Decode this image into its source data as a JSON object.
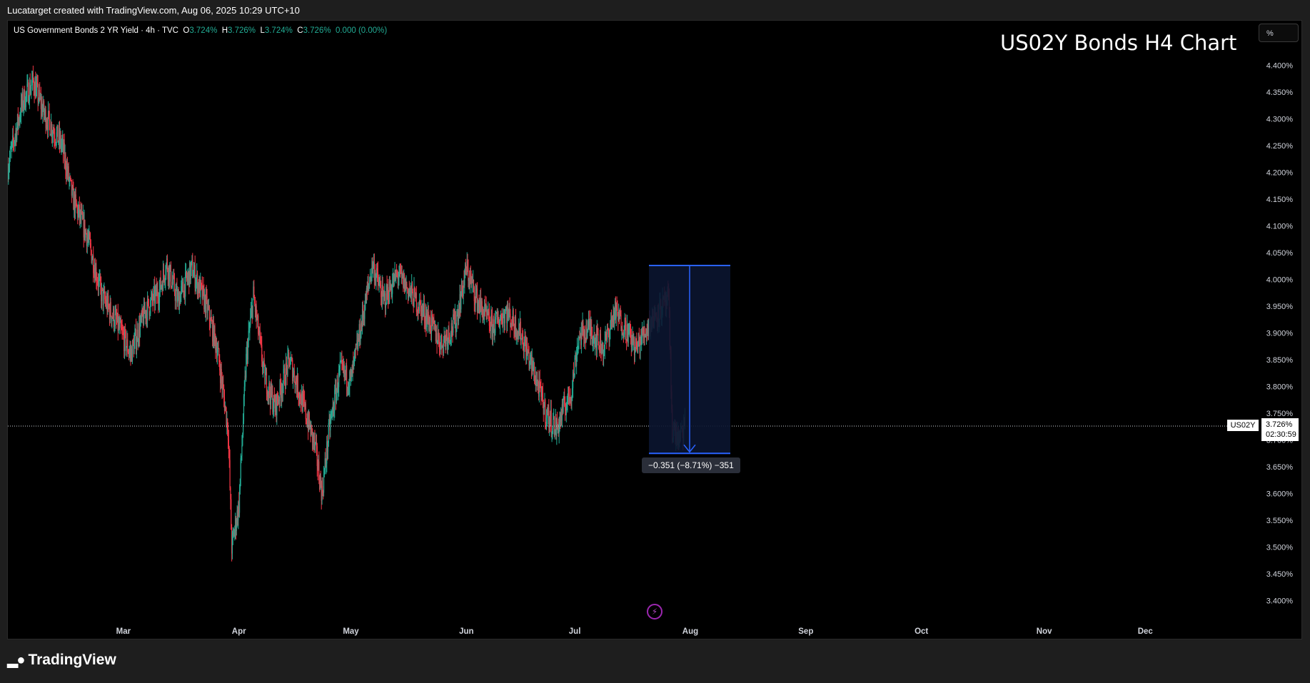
{
  "header": {
    "attribution": "Lucatarget created with TradingView.com, Aug 06, 2025 10:29 UTC+10"
  },
  "legend": {
    "instrument": "US Government Bonds 2 YR Yield · 4h · TVC",
    "o_label": "O",
    "o_value": "3.724%",
    "h_label": "H",
    "h_value": "3.726%",
    "l_label": "L",
    "l_value": "3.724%",
    "c_label": "C",
    "c_value": "3.726%",
    "change": "0.000 (0.00%)"
  },
  "title": "US02Y Bonds H4 Chart",
  "scale_button": "%",
  "price_tag": {
    "symbol": "US02Y",
    "price": "3.726%",
    "countdown": "02:30:59"
  },
  "measure": {
    "label": "−0.351 (−8.71%) −351",
    "from": 4.026,
    "to": 3.675
  },
  "footer": {
    "brand": "TradingView"
  },
  "colors": {
    "up": "#22ab94",
    "down": "#f23645",
    "background": "#000000",
    "measure_fill": "#0b1530",
    "measure_line": "#2962ff"
  },
  "chart_data": {
    "type": "candlestick",
    "title": "US02Y Bonds H4 Chart",
    "y_unit": "%",
    "ylim": [
      3.37,
      4.43
    ],
    "y_ticks": [
      "4.400%",
      "4.350%",
      "4.300%",
      "4.250%",
      "4.200%",
      "4.150%",
      "4.100%",
      "4.050%",
      "4.000%",
      "3.950%",
      "3.900%",
      "3.850%",
      "3.800%",
      "3.750%",
      "3.700%",
      "3.650%",
      "3.600%",
      "3.550%",
      "3.500%",
      "3.450%",
      "3.400%"
    ],
    "x_ticks": [
      "Mar",
      "Apr",
      "May",
      "Jun",
      "Jul",
      "Aug",
      "Sep",
      "Oct",
      "Nov",
      "Dec"
    ],
    "x_range_days": [
      0,
      345
    ],
    "x_tick_days": [
      32,
      64,
      95,
      127,
      157,
      189,
      221,
      253,
      287,
      315
    ],
    "last_price": 3.726,
    "path": [
      [
        0,
        4.21
      ],
      [
        4,
        4.33
      ],
      [
        7,
        4.37
      ],
      [
        10,
        4.31
      ],
      [
        15,
        4.25
      ],
      [
        18,
        4.15
      ],
      [
        22,
        4.08
      ],
      [
        26,
        3.97
      ],
      [
        30,
        3.92
      ],
      [
        34,
        3.86
      ],
      [
        38,
        3.94
      ],
      [
        42,
        3.98
      ],
      [
        44,
        4.03
      ],
      [
        47,
        3.96
      ],
      [
        51,
        4.02
      ],
      [
        55,
        3.95
      ],
      [
        58,
        3.87
      ],
      [
        61,
        3.72
      ],
      [
        62,
        3.5
      ],
      [
        64,
        3.58
      ],
      [
        66,
        3.85
      ],
      [
        68,
        3.97
      ],
      [
        71,
        3.82
      ],
      [
        74,
        3.76
      ],
      [
        78,
        3.85
      ],
      [
        82,
        3.76
      ],
      [
        85,
        3.69
      ],
      [
        87,
        3.6
      ],
      [
        89,
        3.72
      ],
      [
        92,
        3.83
      ],
      [
        95,
        3.81
      ],
      [
        98,
        3.92
      ],
      [
        101,
        4.03
      ],
      [
        104,
        3.96
      ],
      [
        108,
        4.01
      ],
      [
        112,
        3.97
      ],
      [
        116,
        3.93
      ],
      [
        120,
        3.88
      ],
      [
        124,
        3.92
      ],
      [
        127,
        4.02
      ],
      [
        130,
        3.96
      ],
      [
        134,
        3.91
      ],
      [
        138,
        3.94
      ],
      [
        142,
        3.9
      ],
      [
        146,
        3.82
      ],
      [
        149,
        3.75
      ],
      [
        152,
        3.72
      ],
      [
        154,
        3.76
      ],
      [
        156,
        3.79
      ],
      [
        158,
        3.89
      ],
      [
        161,
        3.91
      ],
      [
        165,
        3.87
      ],
      [
        168,
        3.94
      ],
      [
        171,
        3.91
      ],
      [
        174,
        3.87
      ],
      [
        177,
        3.91
      ],
      [
        180,
        3.94
      ],
      [
        183,
        3.96
      ],
      [
        184,
        3.72
      ],
      [
        186,
        3.7
      ],
      [
        187.5,
        3.726
      ]
    ]
  }
}
